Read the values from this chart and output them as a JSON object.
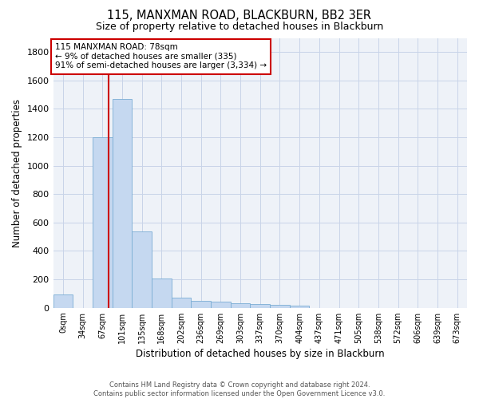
{
  "title": "115, MANXMAN ROAD, BLACKBURN, BB2 3ER",
  "subtitle": "Size of property relative to detached houses in Blackburn",
  "xlabel": "Distribution of detached houses by size in Blackburn",
  "ylabel": "Number of detached properties",
  "bin_labels": [
    "0sqm",
    "34sqm",
    "67sqm",
    "101sqm",
    "135sqm",
    "168sqm",
    "202sqm",
    "236sqm",
    "269sqm",
    "303sqm",
    "337sqm",
    "370sqm",
    "404sqm",
    "437sqm",
    "471sqm",
    "505sqm",
    "538sqm",
    "572sqm",
    "606sqm",
    "639sqm",
    "673sqm"
  ],
  "bar_values": [
    95,
    0,
    1200,
    1470,
    535,
    205,
    72,
    50,
    42,
    30,
    25,
    20,
    16,
    0,
    0,
    0,
    0,
    0,
    0,
    0,
    0
  ],
  "bar_color": "#c5d8f0",
  "bar_edgecolor": "#7aadd4",
  "vline_color": "#cc0000",
  "ylim": [
    0,
    1900
  ],
  "yticks": [
    0,
    200,
    400,
    600,
    800,
    1000,
    1200,
    1400,
    1600,
    1800
  ],
  "annotation_line1": "115 MANXMAN ROAD: 78sqm",
  "annotation_line2": "← 9% of detached houses are smaller (335)",
  "annotation_line3": "91% of semi-detached houses are larger (3,334) →",
  "annotation_box_color": "#ffffff",
  "annotation_box_edgecolor": "#cc0000",
  "footer_text": "Contains HM Land Registry data © Crown copyright and database right 2024.\nContains public sector information licensed under the Open Government Licence v3.0.",
  "grid_color": "#c8d4e8",
  "bg_color": "#eef2f8"
}
